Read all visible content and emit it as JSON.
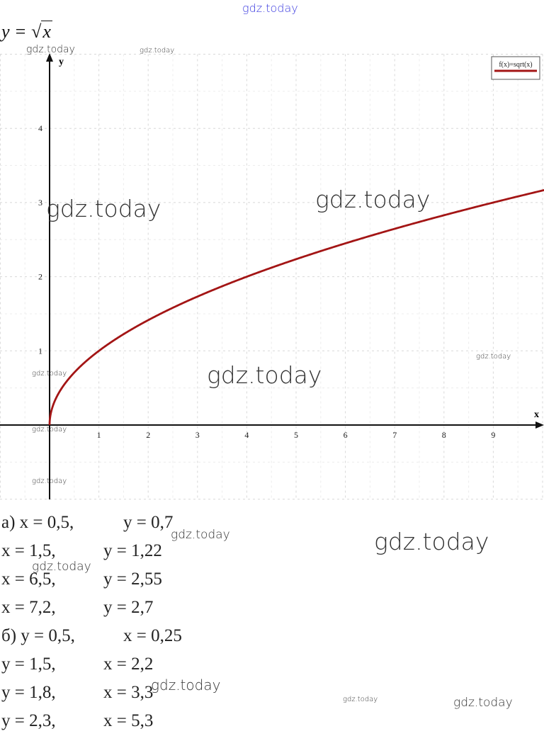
{
  "formula": {
    "lhs": "y =",
    "radical": "√",
    "radicand": "x"
  },
  "watermark": "gdz.today",
  "chart_data": {
    "type": "line",
    "function": "sqrt(x)",
    "xlabel": "x",
    "ylabel": "y",
    "xlim": [
      -1,
      10
    ],
    "ylim": [
      -1,
      5
    ],
    "x_ticks": [
      "1",
      "2",
      "3",
      "4",
      "5",
      "6",
      "7",
      "8",
      "9"
    ],
    "y_ticks": [
      "1",
      "2",
      "3",
      "4"
    ],
    "grid": true,
    "legend": {
      "position": "top-right",
      "label": "f(x)=sqrt(x)"
    },
    "series": [
      {
        "name": "f(x)=sqrt(x)",
        "color": "#a31515",
        "x": [
          0,
          0.25,
          0.5,
          1,
          1.5,
          2,
          3,
          4,
          5,
          6,
          7,
          8,
          9,
          10
        ],
        "y": [
          0,
          0.5,
          0.71,
          1,
          1.22,
          1.41,
          1.73,
          2,
          2.24,
          2.45,
          2.65,
          2.83,
          3,
          3.16
        ]
      }
    ]
  },
  "answers": [
    {
      "left": "а) x = 0,5,",
      "right": "y = 0,7"
    },
    {
      "left": "x = 1,5,",
      "right": "y = 1,22"
    },
    {
      "left": "x = 6,5,",
      "right": "y = 2,55"
    },
    {
      "left": "x = 7,2,",
      "right": "y = 2,7"
    },
    {
      "left": "б) y = 0,5,",
      "right": "x = 0,25"
    },
    {
      "left": "y = 1,5,",
      "right": "x = 2,2"
    },
    {
      "left": "y = 1,8,",
      "right": "x = 3,3"
    },
    {
      "left": "y = 2,3,",
      "right": "x = 5,3"
    }
  ]
}
